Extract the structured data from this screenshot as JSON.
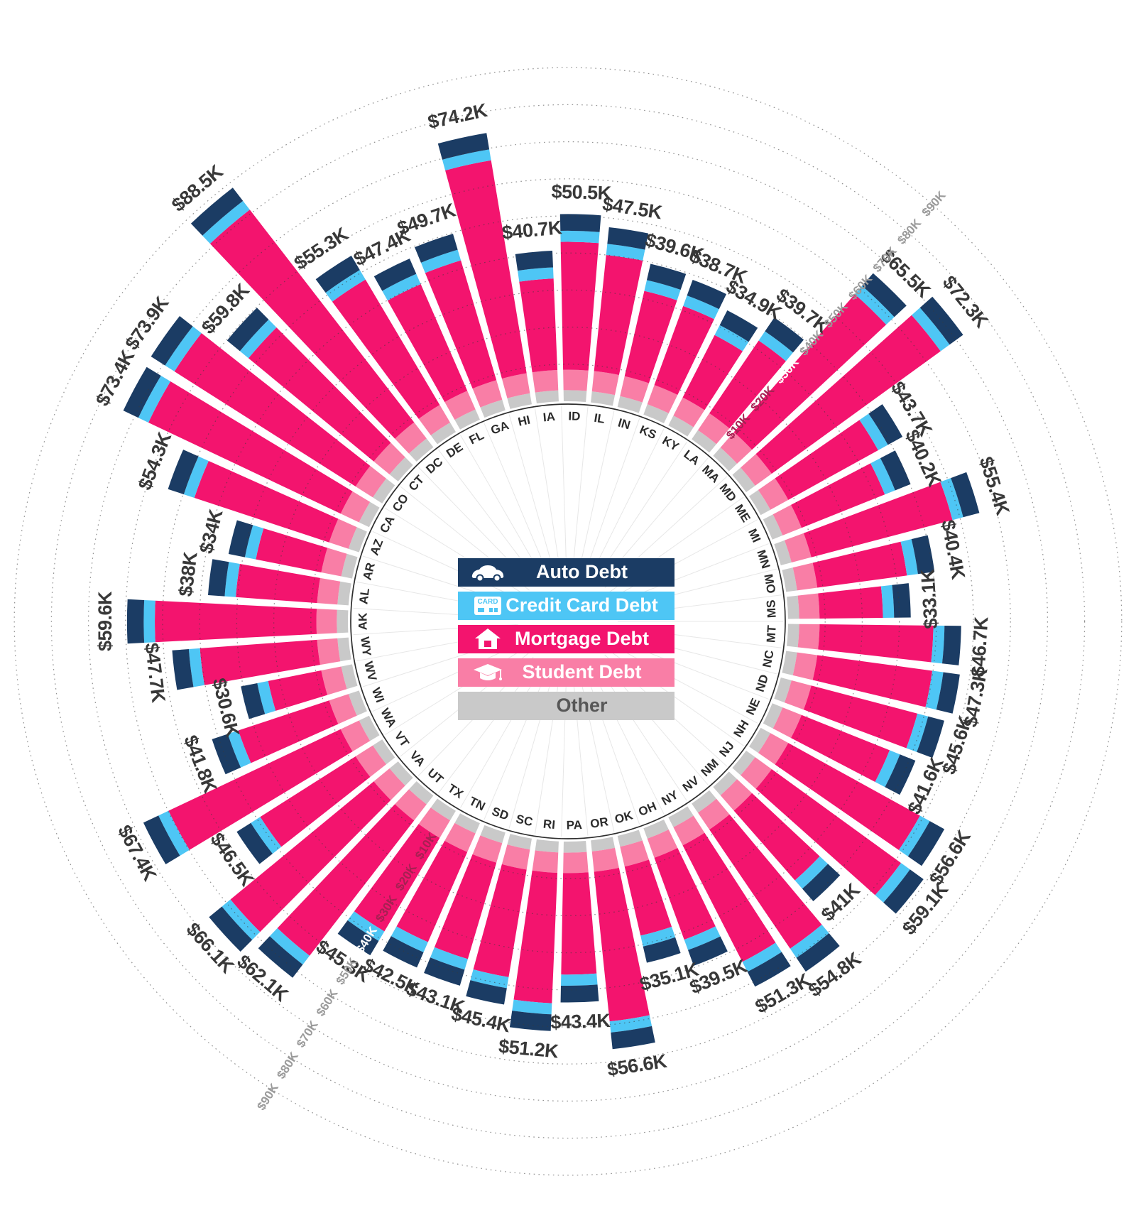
{
  "page": {
    "background": "#ffffff"
  },
  "chart_data": {
    "type": "bar",
    "subtype": "radial_stacked_bar",
    "title": "",
    "units": "USD (thousands) per state",
    "layout_hints": {
      "start_state": "AK",
      "start_angle_deg_from_north": -90,
      "direction": "clockwise_alphabetical",
      "grid": "dotted concentric circles every $10K",
      "legend_position": "center"
    },
    "axis": {
      "tick_labels": [
        "$10K",
        "$20K",
        "$30K",
        "$40K",
        "$50K",
        "$60K",
        "$70K",
        "$80K",
        "$90K"
      ],
      "tick_values_k": [
        10,
        20,
        30,
        40,
        50,
        60,
        70,
        80,
        90
      ],
      "max_k": 90,
      "top_right_tick_colors": [
        "#A62052",
        "#A62052",
        "#FFFFFF",
        "#9A9A9A",
        "#9A9A9A",
        "#9A9A9A",
        "#9A9A9A",
        "#9A9A9A",
        "#9A9A9A"
      ],
      "bottom_left_tick_colors": [
        "#A62052",
        "#A62052",
        "#A62052",
        "#FFFFFF",
        "#9A9A9A",
        "#9A9A9A",
        "#9A9A9A",
        "#9A9A9A",
        "#9A9A9A"
      ]
    },
    "legend": {
      "items": [
        {
          "label": "Auto Debt",
          "color": "#1B3C64",
          "text_color": "#FFFFFF",
          "icon": "car-icon"
        },
        {
          "label": "Credit Card Debt",
          "color": "#4EC6F5",
          "text_color": "#FFFFFF",
          "icon": "credit-card-icon"
        },
        {
          "label": "Mortgage Debt",
          "color": "#F3146E",
          "text_color": "#FFFFFF",
          "icon": "house-icon"
        },
        {
          "label": "Student Debt",
          "color": "#F97EA6",
          "text_color": "#FFFFFF",
          "icon": "graduation-cap-icon"
        },
        {
          "label": "Other",
          "color": "#C9C9C9",
          "text_color": "#575757",
          "icon": null
        }
      ]
    },
    "series_order_inner_to_outer": [
      "Other",
      "Student Debt",
      "Mortgage Debt",
      "Credit Card Debt",
      "Auto Debt"
    ],
    "segments_estimated_k": {
      "other": 3.0,
      "student": 5.5,
      "credit_card": 3.0,
      "auto": 4.5,
      "mortgage": "total_k minus 16"
    },
    "states": [
      {
        "abbr": "AK",
        "total_k": 59.6,
        "label": "$59.6K"
      },
      {
        "abbr": "AL",
        "total_k": 38.0,
        "label": "$38K"
      },
      {
        "abbr": "AR",
        "total_k": 34.0,
        "label": "$34K"
      },
      {
        "abbr": "AZ",
        "total_k": 54.3,
        "label": "$54.3K"
      },
      {
        "abbr": "CA",
        "total_k": 73.4,
        "label": "$73.4K"
      },
      {
        "abbr": "CO",
        "total_k": 73.9,
        "label": "$73.9K"
      },
      {
        "abbr": "CT",
        "total_k": 59.8,
        "label": "$59.8K"
      },
      {
        "abbr": "DC",
        "total_k": 88.5,
        "label": "$88.5K"
      },
      {
        "abbr": "DE",
        "total_k": 55.3,
        "label": "$55.3K"
      },
      {
        "abbr": "FL",
        "total_k": 47.4,
        "label": "$47.4K"
      },
      {
        "abbr": "GA",
        "total_k": 49.7,
        "label": "$49.7K"
      },
      {
        "abbr": "HI",
        "total_k": 74.2,
        "label": "$74.2K"
      },
      {
        "abbr": "IA",
        "total_k": 40.7,
        "label": "$40.7K"
      },
      {
        "abbr": "ID",
        "total_k": 50.5,
        "label": "$50.5K"
      },
      {
        "abbr": "IL",
        "total_k": 47.5,
        "label": "$47.5K"
      },
      {
        "abbr": "IN",
        "total_k": 39.6,
        "label": "$39.6K"
      },
      {
        "abbr": "KS",
        "total_k": 38.7,
        "label": "$38.7K"
      },
      {
        "abbr": "KY",
        "total_k": 34.9,
        "label": "$34.9K"
      },
      {
        "abbr": "LA",
        "total_k": 39.7,
        "label": "$39.7K"
      },
      {
        "abbr": "MA",
        "total_k": 65.5,
        "label": "$65.5K"
      },
      {
        "abbr": "MD",
        "total_k": 72.3,
        "label": "$72.3K"
      },
      {
        "abbr": "ME",
        "total_k": 43.7,
        "label": "$43.7K"
      },
      {
        "abbr": "MI",
        "total_k": 40.2,
        "label": "$40.2K"
      },
      {
        "abbr": "MN",
        "total_k": 55.4,
        "label": "$55.4K"
      },
      {
        "abbr": "MO",
        "total_k": 40.4,
        "label": "$40.4K"
      },
      {
        "abbr": "MS",
        "total_k": 33.1,
        "label": "$33.1K"
      },
      {
        "abbr": "MT",
        "total_k": 46.7,
        "label": "$46.7K"
      },
      {
        "abbr": "NC",
        "total_k": 47.3,
        "label": "$47.3K"
      },
      {
        "abbr": "ND",
        "total_k": 45.6,
        "label": "$45.6K"
      },
      {
        "abbr": "NE",
        "total_k": 41.6,
        "label": "$41.6K"
      },
      {
        "abbr": "NH",
        "total_k": 56.6,
        "label": "$56.6K"
      },
      {
        "abbr": "NJ",
        "total_k": 59.1,
        "label": "$59.1K"
      },
      {
        "abbr": "NM",
        "total_k": 41.0,
        "label": "$41K"
      },
      {
        "abbr": "NV",
        "total_k": 54.8,
        "label": "$54.8K"
      },
      {
        "abbr": "NY",
        "total_k": 51.3,
        "label": "$51.3K"
      },
      {
        "abbr": "OH",
        "total_k": 39.5,
        "label": "$39.5K"
      },
      {
        "abbr": "OK",
        "total_k": 35.1,
        "label": "$35.1K"
      },
      {
        "abbr": "OR",
        "total_k": 56.6,
        "label": "$56.6K"
      },
      {
        "abbr": "PA",
        "total_k": 43.4,
        "label": "$43.4K"
      },
      {
        "abbr": "RI",
        "total_k": 51.2,
        "label": "$51.2K"
      },
      {
        "abbr": "SC",
        "total_k": 45.4,
        "label": "$45.4K"
      },
      {
        "abbr": "SD",
        "total_k": 43.1,
        "label": "$43.1K"
      },
      {
        "abbr": "TN",
        "total_k": 42.5,
        "label": "$42.5K"
      },
      {
        "abbr": "TX",
        "total_k": 45.3,
        "label": "$45.3K"
      },
      {
        "abbr": "UT",
        "total_k": 62.1,
        "label": "$62.1K"
      },
      {
        "abbr": "VA",
        "total_k": 66.1,
        "label": "$66.1K"
      },
      {
        "abbr": "VT",
        "total_k": 46.5,
        "label": "$46.5K"
      },
      {
        "abbr": "WA",
        "total_k": 67.4,
        "label": "$67.4K"
      },
      {
        "abbr": "WI",
        "total_k": 41.8,
        "label": "$41.8K"
      },
      {
        "abbr": "WV",
        "total_k": 30.6,
        "label": "$30.6K"
      },
      {
        "abbr": "WY",
        "total_k": 47.7,
        "label": "$47.7K"
      }
    ]
  }
}
